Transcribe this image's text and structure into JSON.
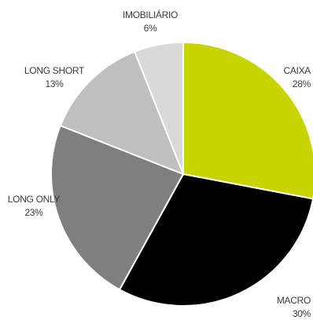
{
  "chart_data": {
    "type": "pie",
    "title": "",
    "categories": [
      "CAIXA",
      "MACRO",
      "LONG ONLY",
      "LONG SHORT",
      "IMOBILIÁRIO"
    ],
    "values": [
      28,
      30,
      23,
      13,
      6
    ],
    "value_labels": [
      "28%",
      "30%",
      "23%",
      "13%",
      "6%"
    ],
    "colors": [
      "#c8d400",
      "#000000",
      "#7f7f7f",
      "#bfbfbf",
      "#d9d9d9"
    ],
    "start_angle": "12 o'clock",
    "direction": "clockwise",
    "legend": "none; labels placed outside each slice"
  }
}
